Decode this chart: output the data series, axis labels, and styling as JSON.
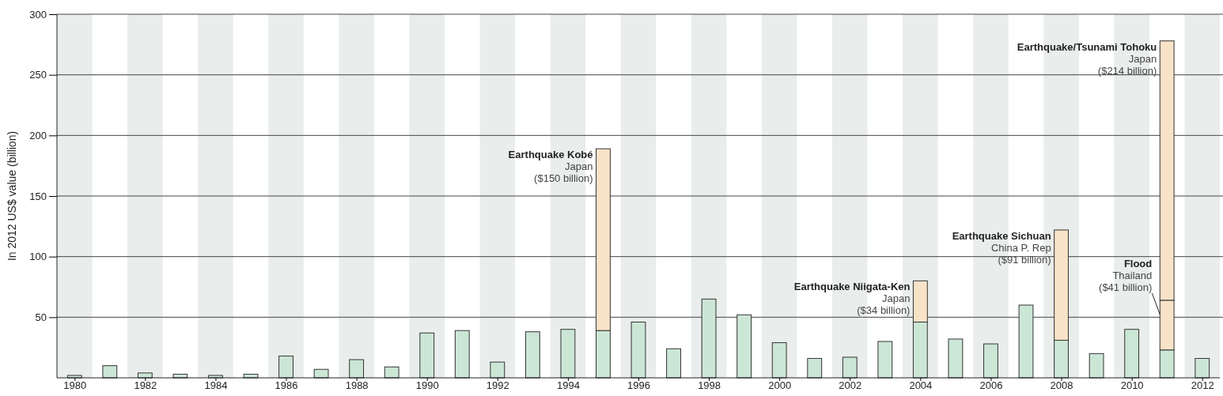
{
  "chart_data": {
    "type": "bar",
    "stacked": true,
    "ylabel": "In 2012 US$ value (billion)",
    "x": [
      1980,
      1981,
      1982,
      1983,
      1984,
      1985,
      1986,
      1987,
      1988,
      1989,
      1990,
      1991,
      1992,
      1993,
      1994,
      1995,
      1996,
      1997,
      1998,
      1999,
      2000,
      2001,
      2002,
      2003,
      2004,
      2005,
      2006,
      2007,
      2008,
      2009,
      2010,
      2011,
      2012
    ],
    "xlim": [
      1979.5,
      2012.5
    ],
    "xticks": [
      1980,
      1982,
      1984,
      1986,
      1988,
      1990,
      1992,
      1994,
      1996,
      1998,
      2000,
      2002,
      2004,
      2006,
      2008,
      2010,
      2012
    ],
    "ylim": [
      0,
      300
    ],
    "yticks": [
      50,
      100,
      150,
      200,
      250,
      300
    ],
    "grid": "y",
    "series": [
      {
        "color": "#cce6d6",
        "values": [
          2,
          10,
          4,
          3,
          2,
          3,
          18,
          7,
          15,
          9,
          37,
          39,
          13,
          38,
          40,
          39,
          46,
          24,
          65,
          52,
          29,
          16,
          17,
          30,
          46,
          32,
          28,
          60,
          31,
          20,
          40,
          23,
          16
        ]
      },
      {
        "color": "#f9e3c8",
        "values": [
          null,
          null,
          null,
          null,
          null,
          null,
          null,
          null,
          null,
          null,
          null,
          null,
          null,
          null,
          null,
          150,
          null,
          null,
          null,
          null,
          null,
          null,
          null,
          null,
          34,
          null,
          null,
          null,
          91,
          null,
          null,
          41,
          null
        ]
      },
      {
        "color": "#f9e3c8",
        "values": [
          null,
          null,
          null,
          null,
          null,
          null,
          null,
          null,
          null,
          null,
          null,
          null,
          null,
          null,
          null,
          null,
          null,
          null,
          null,
          null,
          null,
          null,
          null,
          null,
          null,
          null,
          null,
          null,
          null,
          null,
          null,
          214,
          null
        ]
      }
    ],
    "bands": [
      {
        "axis": "x",
        "from": 1979.5,
        "to": 1980.5,
        "color": "#e9edeb"
      },
      {
        "axis": "x",
        "from": 1981.5,
        "to": 1982.5,
        "color": "#e9edeb"
      },
      {
        "axis": "x",
        "from": 1983.5,
        "to": 1984.5,
        "color": "#e9edeb"
      },
      {
        "axis": "x",
        "from": 1985.5,
        "to": 1986.5,
        "color": "#e9edeb"
      },
      {
        "axis": "x",
        "from": 1987.5,
        "to": 1988.5,
        "color": "#e9edeb"
      },
      {
        "axis": "x",
        "from": 1989.5,
        "to": 1990.5,
        "color": "#e9edeb"
      },
      {
        "axis": "x",
        "from": 1991.5,
        "to": 1992.5,
        "color": "#e9edeb"
      },
      {
        "axis": "x",
        "from": 1993.5,
        "to": 1994.5,
        "color": "#e9edeb"
      },
      {
        "axis": "x",
        "from": 1995.5,
        "to": 1996.5,
        "color": "#e9edeb"
      },
      {
        "axis": "x",
        "from": 1997.5,
        "to": 1998.5,
        "color": "#e9edeb"
      },
      {
        "axis": "x",
        "from": 1999.5,
        "to": 2000.5,
        "color": "#e9edeb"
      },
      {
        "axis": "x",
        "from": 2001.5,
        "to": 2002.5,
        "color": "#e9edeb"
      },
      {
        "axis": "x",
        "from": 2003.5,
        "to": 2004.5,
        "color": "#e9edeb"
      },
      {
        "axis": "x",
        "from": 2005.5,
        "to": 2006.5,
        "color": "#e9edeb"
      },
      {
        "axis": "x",
        "from": 2007.5,
        "to": 2008.5,
        "color": "#e9edeb"
      },
      {
        "axis": "x",
        "from": 2009.5,
        "to": 2010.5,
        "color": "#e9edeb"
      },
      {
        "axis": "x",
        "from": 2011.5,
        "to": 2012.5,
        "color": "#e9edeb"
      }
    ],
    "annotations": [
      {
        "text": "Earthquake Kobé\nJapan\n($150 billion)",
        "x": 1995,
        "y": 189
      },
      {
        "text": "Earthquake Niigata-Ken\nJapan\n($34 billion)",
        "x": 2004,
        "y": 80
      },
      {
        "text": "Earthquake Sichuan\nChina P. Rep\n($91 billion)",
        "x": 2008,
        "y": 122
      },
      {
        "text": "Earthquake/Tsunami Tohoku\nJapan\n($214 billion)",
        "x": 2011,
        "y": 278
      },
      {
        "text": "Flood\nThailand\n($41 billion)",
        "x": 2011,
        "y": 64
      }
    ]
  }
}
